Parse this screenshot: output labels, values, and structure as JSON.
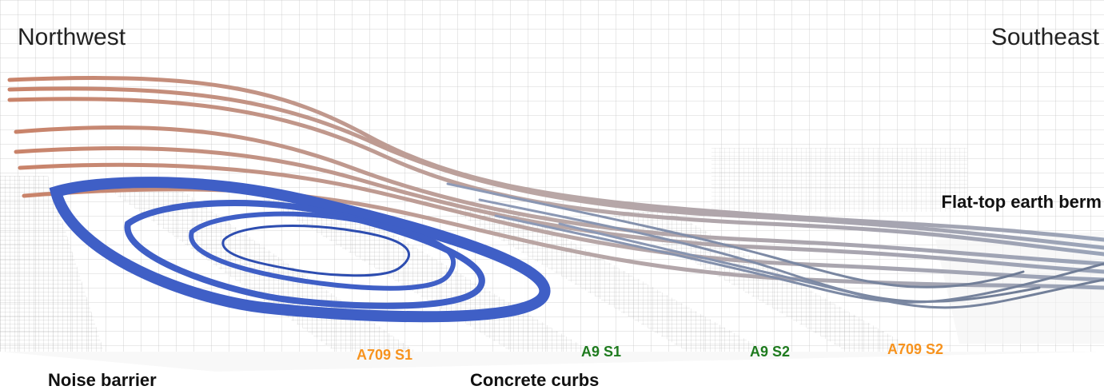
{
  "labels": {
    "northwest": "Northwest",
    "southeast": "Southeast",
    "berm": "Flat-top earth berm",
    "noise_barrier": "Noise barrier",
    "curbs": "Concrete curbs",
    "segments": [
      "A709 S1",
      "A9 S1",
      "A9 S2",
      "A709 S2"
    ]
  }
}
